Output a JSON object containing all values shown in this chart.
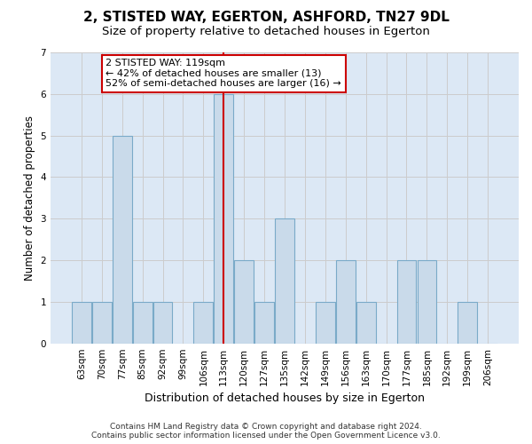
{
  "title": "2, STISTED WAY, EGERTON, ASHFORD, TN27 9DL",
  "subtitle": "Size of property relative to detached houses in Egerton",
  "xlabel": "Distribution of detached houses by size in Egerton",
  "ylabel": "Number of detached properties",
  "categories": [
    "63sqm",
    "70sqm",
    "77sqm",
    "85sqm",
    "92sqm",
    "99sqm",
    "106sqm",
    "113sqm",
    "120sqm",
    "127sqm",
    "135sqm",
    "142sqm",
    "149sqm",
    "156sqm",
    "163sqm",
    "170sqm",
    "177sqm",
    "185sqm",
    "192sqm",
    "199sqm",
    "206sqm"
  ],
  "values": [
    1,
    1,
    5,
    1,
    1,
    0,
    1,
    6,
    2,
    1,
    3,
    0,
    1,
    2,
    1,
    0,
    2,
    2,
    0,
    1,
    0
  ],
  "bar_color": "#c9daea",
  "bar_edgecolor": "#7aaac8",
  "vline_x": 7,
  "annotation_text": "2 STISTED WAY: 119sqm\n← 42% of detached houses are smaller (13)\n52% of semi-detached houses are larger (16) →",
  "annotation_box_color": "#ffffff",
  "annotation_box_edgecolor": "#cc0000",
  "vline_color": "#cc0000",
  "ylim": [
    0,
    7
  ],
  "yticks": [
    0,
    1,
    2,
    3,
    4,
    5,
    6,
    7
  ],
  "grid_color": "#cccccc",
  "background_color": "#dce8f5",
  "footer": "Contains HM Land Registry data © Crown copyright and database right 2024.\nContains public sector information licensed under the Open Government Licence v3.0.",
  "title_fontsize": 11,
  "subtitle_fontsize": 9.5,
  "xlabel_fontsize": 9,
  "ylabel_fontsize": 8.5,
  "tick_fontsize": 7.5,
  "footer_fontsize": 6.5,
  "ann_fontsize": 8
}
